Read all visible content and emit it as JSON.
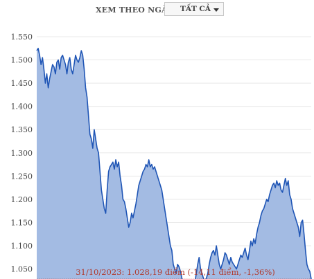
{
  "filter": {
    "label": "XEM THEO NGÀY",
    "selected": "TẤT CẢ"
  },
  "chart_data": {
    "type": "area",
    "ylim": [
      1028.5,
      1550
    ],
    "y_ticks": [
      "1.550",
      "1.500",
      "1.450",
      "1.400",
      "1.350",
      "1.300",
      "1.250",
      "1.200",
      "1.150",
      "1.100",
      "1.050"
    ],
    "y_tick_values": [
      1550,
      1500,
      1450,
      1400,
      1350,
      1300,
      1250,
      1200,
      1150,
      1100,
      1050
    ],
    "grid": "horizontal",
    "colors": {
      "line": "#1f55b5",
      "fill": "#a3bbe3",
      "reference": "#b03a2e",
      "grid": "#e8e8e8"
    },
    "reference_line": {
      "value": 1028.19,
      "annotation": "31/10/2023: 1.028,19 điểm (-14,11 điểm, -1,36%)"
    },
    "series": [
      {
        "values": [
          1520,
          1525,
          1510,
          1490,
          1505,
          1480,
          1450,
          1470,
          1440,
          1460,
          1475,
          1490,
          1485,
          1470,
          1495,
          1500,
          1480,
          1505,
          1510,
          1500,
          1490,
          1470,
          1495,
          1505,
          1480,
          1470,
          1490,
          1510,
          1500,
          1495,
          1505,
          1520,
          1510,
          1480,
          1440,
          1420,
          1380,
          1340,
          1330,
          1310,
          1350,
          1330,
          1310,
          1300,
          1260,
          1220,
          1200,
          1180,
          1170,
          1220,
          1260,
          1270,
          1275,
          1280,
          1265,
          1285,
          1270,
          1280,
          1250,
          1230,
          1200,
          1195,
          1180,
          1160,
          1140,
          1150,
          1170,
          1160,
          1175,
          1190,
          1210,
          1230,
          1240,
          1250,
          1260,
          1265,
          1275,
          1270,
          1285,
          1270,
          1275,
          1265,
          1270,
          1260,
          1250,
          1240,
          1230,
          1220,
          1200,
          1180,
          1160,
          1140,
          1120,
          1100,
          1090,
          1060,
          1050,
          1040,
          1060,
          1055,
          1045,
          1030,
          1020,
          1010,
          1015,
          1020,
          1025,
          1020,
          1015,
          1010,
          1020,
          1040,
          1060,
          1075,
          1050,
          1040,
          1030,
          1025,
          1030,
          1040,
          1060,
          1075,
          1085,
          1090,
          1080,
          1100,
          1080,
          1060,
          1050,
          1060,
          1070,
          1085,
          1080,
          1070,
          1060,
          1075,
          1065,
          1060,
          1055,
          1050,
          1060,
          1070,
          1080,
          1075,
          1085,
          1095,
          1080,
          1070,
          1090,
          1110,
          1100,
          1115,
          1105,
          1125,
          1140,
          1150,
          1165,
          1175,
          1180,
          1190,
          1200,
          1195,
          1210,
          1220,
          1230,
          1235,
          1225,
          1240,
          1230,
          1235,
          1220,
          1215,
          1230,
          1245,
          1230,
          1240,
          1210,
          1200,
          1180,
          1170,
          1160,
          1150,
          1140,
          1120,
          1150,
          1155,
          1125,
          1090,
          1060,
          1050,
          1045,
          1028.19
        ]
      }
    ]
  }
}
